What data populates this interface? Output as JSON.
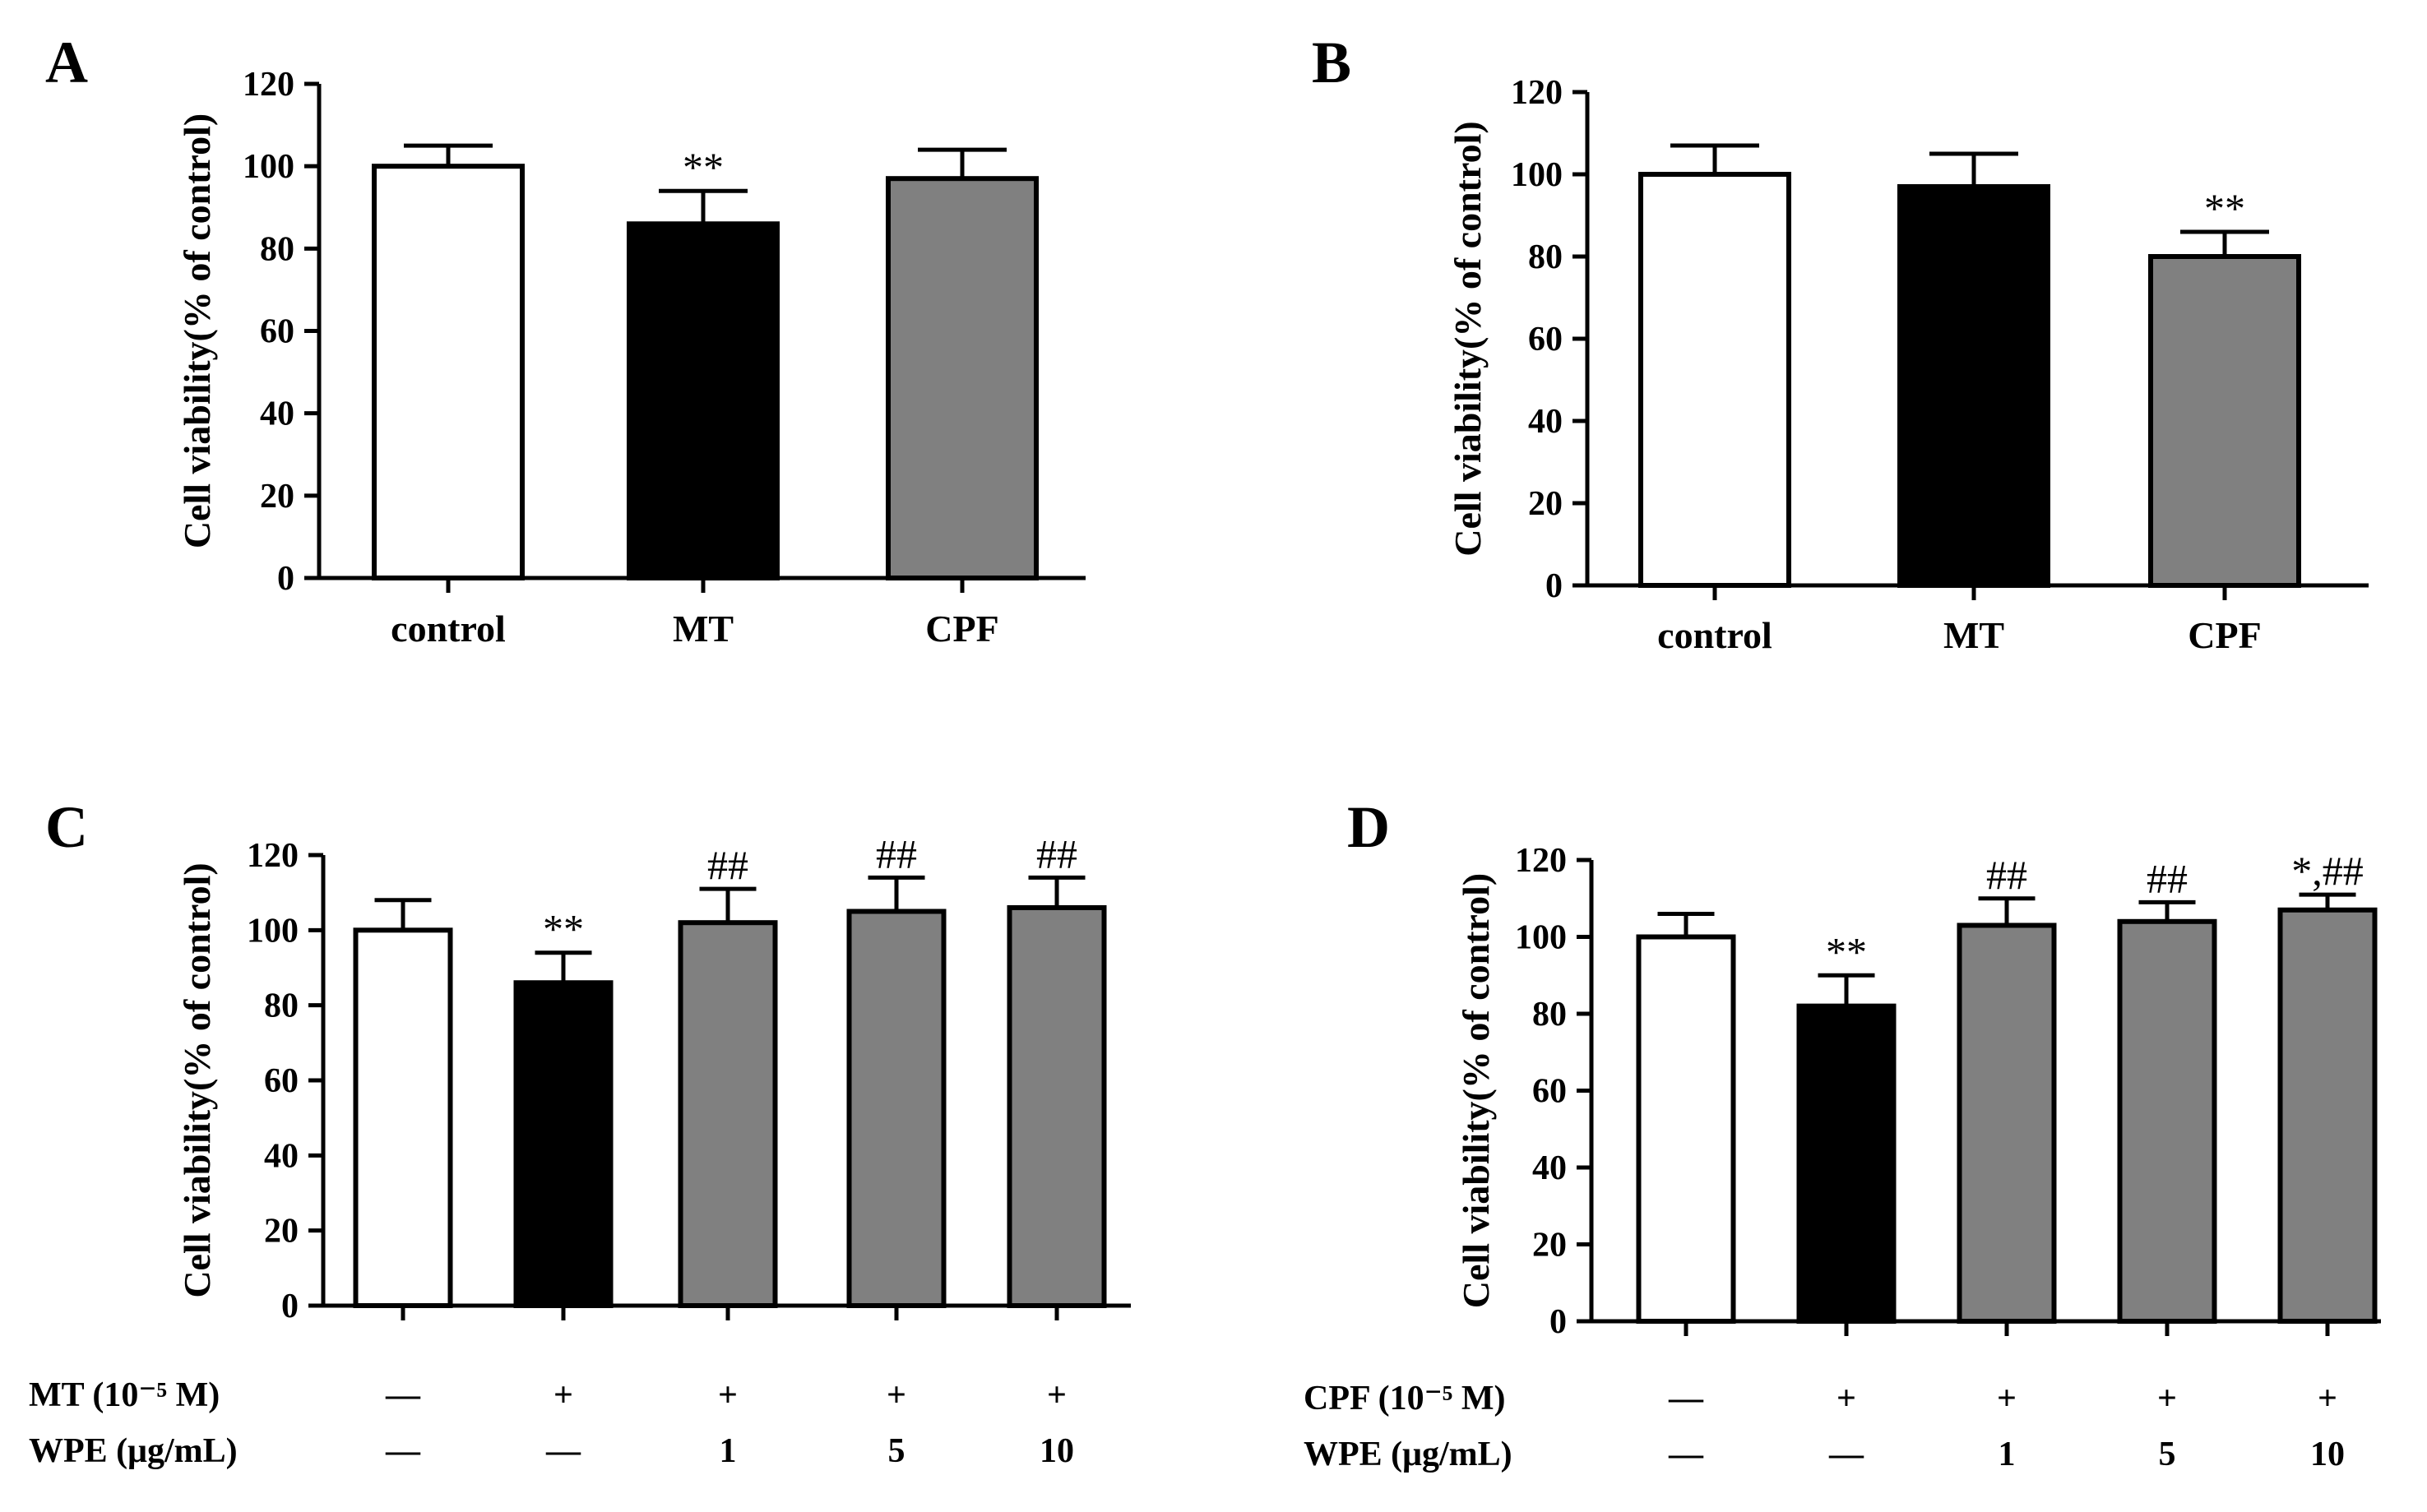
{
  "chart_data": [
    {
      "panel": "A",
      "type": "bar",
      "ylabel": "Cell viability(% of control)",
      "ylim": [
        0,
        120
      ],
      "yticks": [
        0,
        20,
        40,
        60,
        80,
        100,
        120
      ],
      "categories": [
        "control",
        "MT",
        "CPF"
      ],
      "values": [
        100,
        86,
        97
      ],
      "errors": [
        5,
        8,
        7
      ],
      "fills": [
        "#ffffff",
        "#000000",
        "#808080"
      ],
      "annotations": [
        "",
        "**",
        ""
      ],
      "condition_rows": []
    },
    {
      "panel": "B",
      "type": "bar",
      "ylabel": "Cell viability(% of control)",
      "ylim": [
        0,
        120
      ],
      "yticks": [
        0,
        20,
        40,
        60,
        80,
        100,
        120
      ],
      "categories": [
        "control",
        "MT",
        "CPF"
      ],
      "values": [
        100,
        97,
        80
      ],
      "errors": [
        7,
        8,
        6
      ],
      "fills": [
        "#ffffff",
        "#000000",
        "#808080"
      ],
      "annotations": [
        "",
        "",
        "**"
      ],
      "condition_rows": []
    },
    {
      "panel": "C",
      "type": "bar",
      "ylabel": "Cell viability(% of control)",
      "ylim": [
        0,
        120
      ],
      "yticks": [
        0,
        20,
        40,
        60,
        80,
        100,
        120
      ],
      "categories": [
        "",
        "",
        "",
        "",
        ""
      ],
      "values": [
        100,
        86,
        102,
        105,
        106
      ],
      "errors": [
        8,
        8,
        9,
        9,
        8
      ],
      "fills": [
        "#ffffff",
        "#000000",
        "#808080",
        "#808080",
        "#808080"
      ],
      "annotations": [
        "",
        "**",
        "##",
        "##",
        "##"
      ],
      "condition_rows": [
        {
          "label": "MT  (10⁻⁵ M)",
          "values": [
            "—",
            "+",
            "+",
            "+",
            "+"
          ]
        },
        {
          "label": "WPE (μg/mL)",
          "values": [
            "—",
            "—",
            "1",
            "5",
            "10"
          ]
        }
      ]
    },
    {
      "panel": "D",
      "type": "bar",
      "ylabel": "Cell viability(% of control)",
      "ylim": [
        0,
        120
      ],
      "yticks": [
        0,
        20,
        40,
        60,
        80,
        100,
        120
      ],
      "categories": [
        "",
        "",
        "",
        "",
        ""
      ],
      "values": [
        100,
        82,
        103,
        104,
        107
      ],
      "errors": [
        6,
        8,
        7,
        5,
        4
      ],
      "fills": [
        "#ffffff",
        "#000000",
        "#808080",
        "#808080",
        "#808080"
      ],
      "annotations": [
        "",
        "**",
        "##",
        "##",
        "*,##"
      ],
      "condition_rows": [
        {
          "label": "CPF  (10⁻⁵ M)",
          "values": [
            "—",
            "+",
            "+",
            "+",
            "+"
          ]
        },
        {
          "label": "WPE (μg/mL)",
          "values": [
            "—",
            "—",
            "1",
            "5",
            "10"
          ]
        }
      ]
    }
  ]
}
